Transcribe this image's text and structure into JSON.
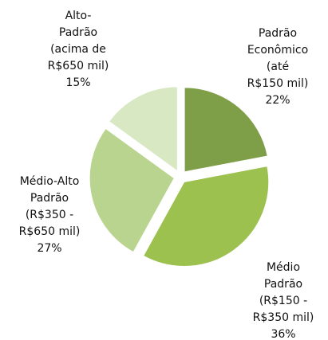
{
  "chart_data": {
    "type": "pie",
    "categories": [
      [
        "Padrão",
        "Econômico",
        "(até",
        "R$150 mil)"
      ],
      [
        "Médio",
        "Padrão",
        "(R$150 -",
        "R$350 mil)"
      ],
      [
        "Médio-Alto",
        "Padrão",
        "(R$350 -",
        "R$650 mil)"
      ],
      [
        "Alto-",
        "Padrão",
        "(acima de",
        "R$650 mil)"
      ]
    ],
    "values": [
      22,
      36,
      27,
      15
    ],
    "value_labels": [
      "22%",
      "36%",
      "27%",
      "15%"
    ],
    "colors": [
      "#7f9e48",
      "#9dc14f",
      "#b9d48e",
      "#d8e8c3"
    ]
  }
}
